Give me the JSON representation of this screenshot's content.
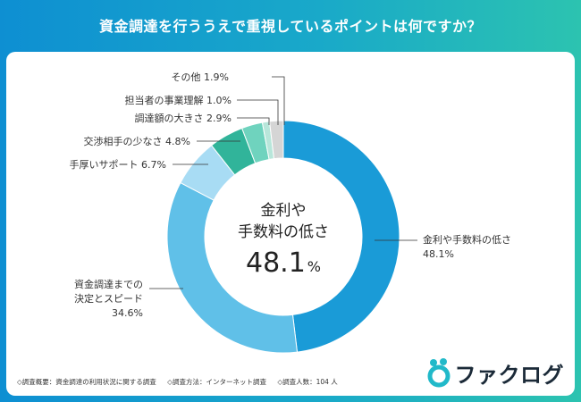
{
  "title": "資金調達を行ううえで重視しているポイントは何ですか？",
  "chart_data": {
    "type": "pie",
    "style": "donut",
    "center_label_lines": [
      "金利や",
      "手数料の低さ"
    ],
    "center_value": "48.1",
    "center_unit": "%",
    "slices": [
      {
        "label": "金利や手数料の低さ",
        "value": 48.1,
        "color": "#1a9bd7"
      },
      {
        "label": "資金調達までの決定とスピード",
        "value": 34.6,
        "color": "#60c0e8"
      },
      {
        "label": "手厚いサポート",
        "value": 6.7,
        "color": "#a8dcf4"
      },
      {
        "label": "交渉相手の少なさ",
        "value": 4.8,
        "color": "#31b49a"
      },
      {
        "label": "調達額の大きさ",
        "value": 2.9,
        "color": "#6fd3be"
      },
      {
        "label": "担当者の事業理解",
        "value": 1.0,
        "color": "#b8e6da"
      },
      {
        "label": "その他",
        "value": 1.9,
        "color": "#d5d5d5"
      }
    ],
    "labels": {
      "main": {
        "line1": "金利や手数料の低さ",
        "line2": "48.1%"
      },
      "speed": {
        "line1": "資金調達までの",
        "line2": "決定とスピード",
        "line3": "34.6%"
      },
      "support": "手厚いサポート 6.7%",
      "negotiation": "交渉相手の少なさ 4.8%",
      "amount": "調達額の大きさ 2.9%",
      "understanding": "担当者の事業理解 1.0%",
      "other": "その他 1.9%"
    }
  },
  "footer": {
    "overview": "◇調査概要：資金調達の利用状況に関する調査",
    "method": "◇調査方法：インターネット調査",
    "count": "◇調査人数：104 人"
  },
  "logo": {
    "text": "ファクログ",
    "color": "#1b2a38",
    "accent": "#21b9c9"
  }
}
